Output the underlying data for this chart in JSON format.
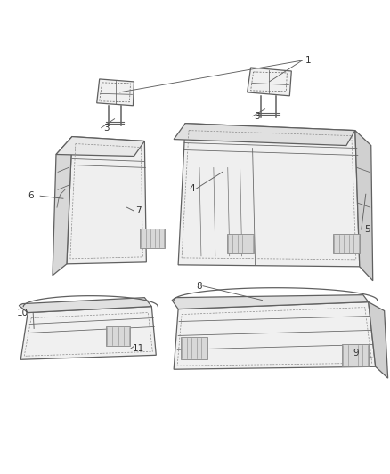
{
  "bg_color": "#ffffff",
  "line_color": "#606060",
  "label_color": "#333333",
  "fig_width": 4.38,
  "fig_height": 5.33,
  "dpi": 100,
  "seat_line_color": "#707070",
  "detail_color": "#909090"
}
